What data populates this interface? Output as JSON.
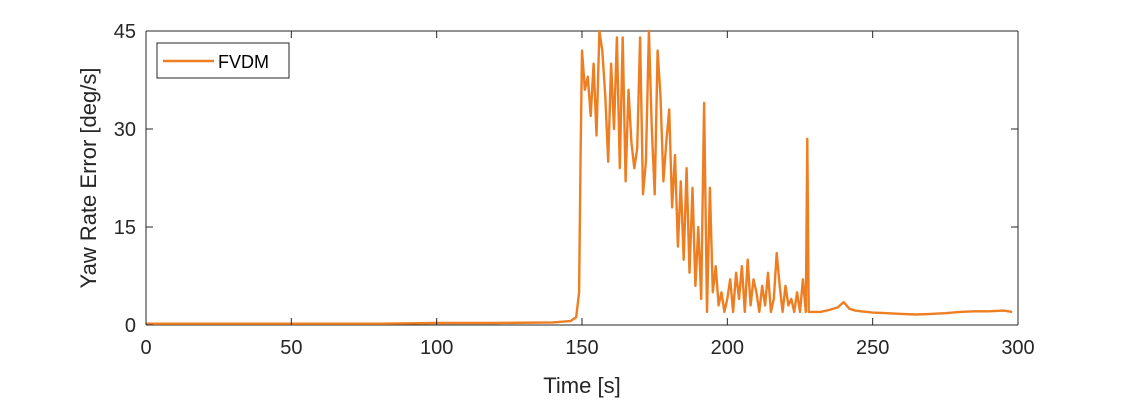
{
  "chart_data": {
    "type": "line",
    "xlabel": "Time [s]",
    "ylabel": "Yaw Rate Error [deg/s]",
    "xlim": [
      0,
      300
    ],
    "ylim": [
      0,
      45
    ],
    "xticks": [
      0,
      50,
      100,
      150,
      200,
      250,
      300
    ],
    "yticks": [
      0,
      15,
      30,
      45
    ],
    "grid": false,
    "legend_position": "top-left",
    "series": [
      {
        "name": "FVDM",
        "color": "#EE7E22",
        "x": [
          0,
          20,
          40,
          60,
          80,
          100,
          120,
          140,
          146,
          148,
          149,
          149.5,
          150,
          151,
          152,
          153,
          154,
          155,
          156,
          157,
          158,
          159,
          160,
          161,
          162,
          163,
          164,
          165,
          166,
          167,
          168,
          169,
          170,
          171,
          172,
          173,
          174,
          175,
          176,
          177,
          178,
          179,
          180,
          181,
          182,
          183,
          184,
          185,
          186,
          187,
          188,
          189,
          190,
          191,
          192,
          193,
          194,
          195,
          196,
          197,
          198,
          199,
          200,
          201,
          202,
          203,
          204,
          205,
          206,
          207,
          208,
          209,
          210,
          211,
          212,
          213,
          214,
          215,
          216,
          217,
          218,
          219,
          220,
          221,
          222,
          223,
          224,
          225,
          226,
          227,
          227.5,
          228,
          229,
          232,
          235,
          238,
          240,
          242,
          244,
          246,
          250,
          255,
          260,
          265,
          270,
          275,
          280,
          285,
          290,
          295,
          298
        ],
        "y": [
          0.2,
          0.2,
          0.2,
          0.2,
          0.2,
          0.3,
          0.3,
          0.4,
          0.6,
          1.2,
          5,
          25,
          42,
          36,
          38,
          32,
          40,
          29,
          45,
          42,
          35,
          25,
          40,
          30,
          44,
          24,
          44,
          22,
          36,
          28,
          24,
          27,
          44,
          20,
          25,
          45,
          30,
          20,
          42,
          35,
          22,
          28,
          33,
          18,
          26,
          12,
          22,
          10,
          24,
          8,
          21,
          6,
          15,
          4,
          34,
          2,
          21,
          5,
          9,
          3,
          5,
          2,
          4,
          7,
          2,
          8,
          4,
          9,
          2,
          10,
          3,
          7,
          5,
          2,
          6,
          3,
          8,
          2,
          4,
          11,
          6,
          2,
          6,
          3,
          4,
          2,
          5,
          2,
          7,
          2,
          28.5,
          2,
          2,
          2,
          2.3,
          2.7,
          3.5,
          2.5,
          2.2,
          2.1,
          1.9,
          1.8,
          1.7,
          1.6,
          1.7,
          1.8,
          2.0,
          2.1,
          2.1,
          2.2,
          2.0
        ]
      }
    ]
  }
}
